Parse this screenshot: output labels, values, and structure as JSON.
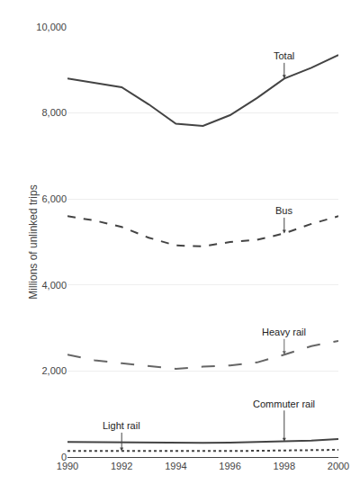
{
  "chart_data": {
    "type": "line",
    "y_label": "Millions of unlinked trips",
    "x": [
      1990,
      1991,
      1992,
      1993,
      1994,
      1995,
      1996,
      1997,
      1998,
      1999,
      2000
    ],
    "series": [
      {
        "name": "Total",
        "color": "#444444",
        "line_style": "solid",
        "values": [
          8800,
          8700,
          8600,
          8200,
          7750,
          7700,
          7950,
          8350,
          8800,
          9050,
          9350
        ]
      },
      {
        "name": "Bus",
        "color": "#444444",
        "line_style": "dashed",
        "values": [
          5600,
          5500,
          5350,
          5100,
          4920,
          4900,
          5000,
          5050,
          5200,
          5420,
          5600
        ]
      },
      {
        "name": "Heavy rail",
        "color": "#666666",
        "line_style": "longdash",
        "values": [
          2380,
          2250,
          2180,
          2120,
          2050,
          2100,
          2130,
          2200,
          2380,
          2580,
          2700
        ]
      },
      {
        "name": "Commuter rail",
        "color": "#444444",
        "line_style": "solid",
        "values": [
          350,
          345,
          338,
          332,
          325,
          328,
          335,
          345,
          360,
          380,
          420
        ]
      },
      {
        "name": "Light rail",
        "color": "#444444",
        "line_style": "dotted",
        "values": [
          140,
          138,
          138,
          135,
          133,
          135,
          140,
          145,
          150,
          158,
          168
        ]
      }
    ],
    "xlim": [
      1990,
      2000
    ],
    "xticks": [
      1990,
      1992,
      1994,
      1996,
      1998,
      2000
    ],
    "ylim": [
      0,
      10000
    ],
    "yticks": [
      0,
      {
        "value": 2000,
        "label": "2,000"
      },
      {
        "value": 4000,
        "label": "4,000"
      },
      {
        "value": 6000,
        "label": "6,000"
      },
      {
        "value": 8000,
        "label": "8,000"
      },
      {
        "value": 10000,
        "label": "10,000"
      }
    ],
    "grid": true
  }
}
